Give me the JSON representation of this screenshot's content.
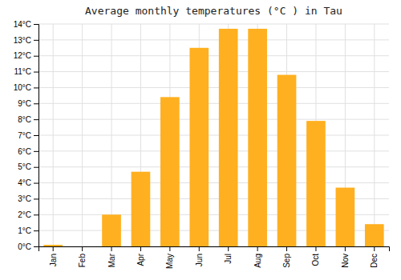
{
  "chart_data": {
    "type": "bar",
    "title": "Average monthly temperatures (°C ) in Tau",
    "categories": [
      "Jan",
      "Feb",
      "Mar",
      "Apr",
      "May",
      "Jun",
      "Jul",
      "Aug",
      "Sep",
      "Oct",
      "Nov",
      "Dec"
    ],
    "values": [
      0.1,
      0.0,
      2.0,
      4.7,
      9.4,
      12.5,
      13.7,
      13.7,
      10.8,
      7.9,
      3.7,
      1.4
    ],
    "color": "#FFB020",
    "ylim": [
      0,
      14
    ],
    "yticks": [
      {
        "value": 0,
        "label": "0°C"
      },
      {
        "value": 1,
        "label": "1°C"
      },
      {
        "value": 2,
        "label": "2°C"
      },
      {
        "value": 3,
        "label": "3°C"
      },
      {
        "value": 4,
        "label": "4°C"
      },
      {
        "value": 5,
        "label": "5°C"
      },
      {
        "value": 6,
        "label": "6°C"
      },
      {
        "value": 7,
        "label": "7°C"
      },
      {
        "value": 8,
        "label": "8°C"
      },
      {
        "value": 9,
        "label": "9°C"
      },
      {
        "value": 10,
        "label": "10°C"
      },
      {
        "value": 11,
        "label": "11°C"
      },
      {
        "value": 12,
        "label": "12°C"
      },
      {
        "value": 13,
        "label": "13°C"
      },
      {
        "value": 14,
        "label": "14°C"
      }
    ],
    "grid": true
  }
}
